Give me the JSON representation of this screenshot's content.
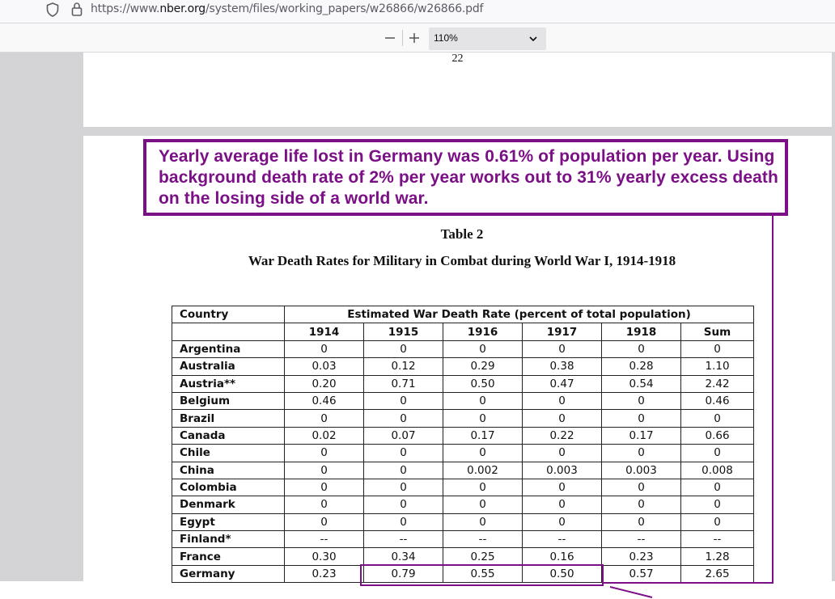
{
  "browser": {
    "url_prefix": "https://www.",
    "url_host": "nber.org",
    "url_path": "/system/files/working_papers/w26866/w26866.pdf"
  },
  "pdf_toolbar": {
    "zoom_out_label": "—",
    "zoom_in_label": "+",
    "zoom_value": "110%"
  },
  "document": {
    "page_number": "22",
    "annotation": "Yearly average life lost in Germany was 0.61% of population per year. Using background death rate of 2% per year works out to 31% yearly excess death on the losing side of a world war.",
    "annotation_color": "#7b0f86",
    "table_label": "Table 2",
    "table_title": "War Death Rates for Military in Combat during World War I, 1914-1918",
    "table": {
      "country_header": "Country",
      "group_header": "Estimated War Death Rate (percent of total population)",
      "columns": [
        "1914",
        "1915",
        "1916",
        "1917",
        "1918",
        "Sum"
      ],
      "rows": [
        {
          "country": "Argentina",
          "values": [
            "0",
            "0",
            "0",
            "0",
            "0",
            "0"
          ]
        },
        {
          "country": "Australia",
          "values": [
            "0.03",
            "0.12",
            "0.29",
            "0.38",
            "0.28",
            "1.10"
          ]
        },
        {
          "country": "Austria**",
          "values": [
            "0.20",
            "0.71",
            "0.50",
            "0.47",
            "0.54",
            "2.42"
          ]
        },
        {
          "country": "Belgium",
          "values": [
            "0.46",
            "0",
            "0",
            "0",
            "0",
            "0.46"
          ]
        },
        {
          "country": "Brazil",
          "values": [
            "0",
            "0",
            "0",
            "0",
            "0",
            "0"
          ]
        },
        {
          "country": "Canada",
          "values": [
            "0.02",
            "0.07",
            "0.17",
            "0.22",
            "0.17",
            "0.66"
          ]
        },
        {
          "country": "Chile",
          "values": [
            "0",
            "0",
            "0",
            "0",
            "0",
            "0"
          ]
        },
        {
          "country": "China",
          "values": [
            "0",
            "0",
            "0.002",
            "0.003",
            "0.003",
            "0.008"
          ]
        },
        {
          "country": "Colombia",
          "values": [
            "0",
            "0",
            "0",
            "0",
            "0",
            "0"
          ]
        },
        {
          "country": "Denmark",
          "values": [
            "0",
            "0",
            "0",
            "0",
            "0",
            "0"
          ]
        },
        {
          "country": "Egypt",
          "values": [
            "0",
            "0",
            "0",
            "0",
            "0",
            "0"
          ]
        },
        {
          "country": "Finland*",
          "values": [
            "--",
            "--",
            "--",
            "--",
            "--",
            "--"
          ]
        },
        {
          "country": "France",
          "values": [
            "0.30",
            "0.34",
            "0.25",
            "0.16",
            "0.23",
            "1.28"
          ]
        },
        {
          "country": "Germany",
          "values": [
            "0.23",
            "0.79",
            "0.55",
            "0.50",
            "0.57",
            "2.65"
          ]
        }
      ]
    }
  }
}
